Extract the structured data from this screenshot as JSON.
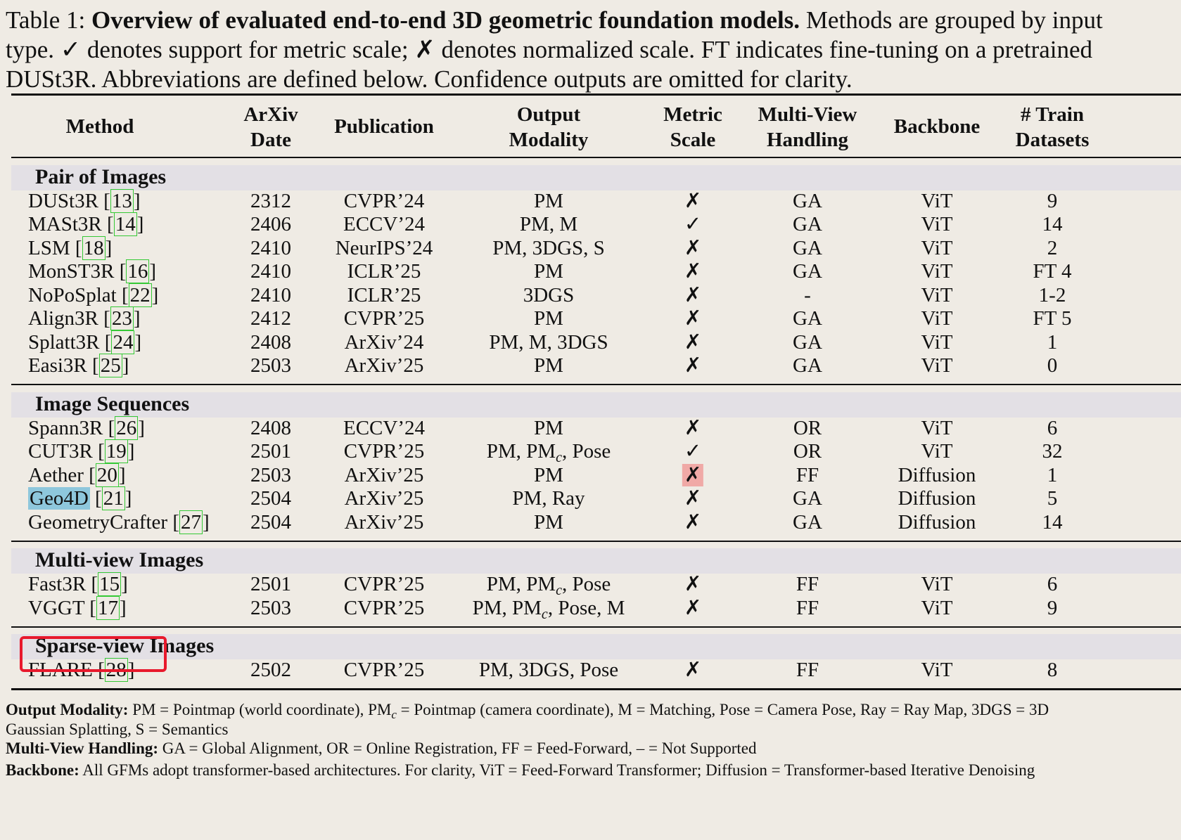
{
  "caption": {
    "label": "Table 1:",
    "title": "Overview of evaluated end-to-end 3D geometric foundation models.",
    "line1_rest": "Methods are grouped by input",
    "line2": "type. ✓ denotes support for metric scale; ✗ denotes normalized scale. FT indicates fine-tuning on a pretrained",
    "line3": "DUSt3R. Abbreviations are defined below. Confidence outputs are omitted for clarity."
  },
  "headers": {
    "method": "Method",
    "arxiv_1": "ArXiv",
    "arxiv_2": "Date",
    "publication": "Publication",
    "output_1": "Output",
    "output_2": "Modality",
    "metric_1": "Metric",
    "metric_2": "Scale",
    "mv_1": "Multi-View",
    "mv_2": "Handling",
    "backbone": "Backbone",
    "train_1": "# Train",
    "train_2": "Datasets"
  },
  "groups": {
    "pair": "Pair of Images",
    "sequences": "Image Sequences",
    "multiview": "Multi-view Images",
    "sparse": "Sparse-view Images"
  },
  "rows": [
    {
      "name": "DUSt3R",
      "ref": "13",
      "date": "2312",
      "pub": "CVPR’24",
      "out": "PM",
      "metric": "✗",
      "mv": "GA",
      "bb": "ViT",
      "train": "9"
    },
    {
      "name": "MASt3R",
      "ref": "14",
      "date": "2406",
      "pub": "ECCV’24",
      "out": "PM, M",
      "metric": "✓",
      "mv": "GA",
      "bb": "ViT",
      "train": "14"
    },
    {
      "name": "LSM",
      "ref": "18",
      "date": "2410",
      "pub": "NeurIPS’24",
      "out": "PM, 3DGS, S",
      "metric": "✗",
      "mv": "GA",
      "bb": "ViT",
      "train": "2"
    },
    {
      "name": "MonST3R",
      "ref": "16",
      "date": "2410",
      "pub": "ICLR’25",
      "out": "PM",
      "metric": "✗",
      "mv": "GA",
      "bb": "ViT",
      "train": "FT 4"
    },
    {
      "name": "NoPoSplat",
      "ref": "22",
      "date": "2410",
      "pub": "ICLR’25",
      "out": "3DGS",
      "metric": "✗",
      "mv": "-",
      "bb": "ViT",
      "train": "1-2"
    },
    {
      "name": "Align3R",
      "ref": "23",
      "date": "2412",
      "pub": "CVPR’25",
      "out": "PM",
      "metric": "✗",
      "mv": "GA",
      "bb": "ViT",
      "train": "FT 5"
    },
    {
      "name": "Splatt3R",
      "ref": "24",
      "date": "2408",
      "pub": "ArXiv’24",
      "out": "PM, M, 3DGS",
      "metric": "✗",
      "mv": "GA",
      "bb": "ViT",
      "train": "1"
    },
    {
      "name": "Easi3R",
      "ref": "25",
      "date": "2503",
      "pub": "ArXiv’25",
      "out": "PM",
      "metric": "✗",
      "mv": "GA",
      "bb": "ViT",
      "train": "0"
    },
    {
      "name": "Spann3R",
      "ref": "26",
      "date": "2408",
      "pub": "ECCV’24",
      "out": "PM",
      "metric": "✗",
      "mv": "OR",
      "bb": "ViT",
      "train": "6"
    },
    {
      "name": "CUT3R",
      "ref": "19",
      "date": "2501",
      "pub": "CVPR’25",
      "out_a": "PM, PM",
      "out_sub": "c",
      "out_b": ", Pose",
      "metric": "✓",
      "mv": "OR",
      "bb": "ViT",
      "train": "32"
    },
    {
      "name": "Aether",
      "ref": "20",
      "date": "2503",
      "pub": "ArXiv’25",
      "out": "PM",
      "metric": "✗",
      "mv": "FF",
      "bb": "Diffusion",
      "train": "1"
    },
    {
      "name": "Geo4D",
      "ref": "21",
      "date": "2504",
      "pub": "ArXiv’25",
      "out": "PM, Ray",
      "metric": "✗",
      "mv": "GA",
      "bb": "Diffusion",
      "train": "5"
    },
    {
      "name": "GeometryCrafter",
      "ref": "27",
      "date": "2504",
      "pub": "ArXiv’25",
      "out": "PM",
      "metric": "✗",
      "mv": "GA",
      "bb": "Diffusion",
      "train": "14"
    },
    {
      "name": "Fast3R",
      "ref": "15",
      "date": "2501",
      "pub": "CVPR’25",
      "out_a": "PM, PM",
      "out_sub": "c",
      "out_b": ", Pose",
      "metric": "✗",
      "mv": "FF",
      "bb": "ViT",
      "train": "6"
    },
    {
      "name": "VGGT",
      "ref": "17",
      "date": "2503",
      "pub": "CVPR’25",
      "out_a": "PM, PM",
      "out_sub": "c",
      "out_b": ", Pose, M",
      "metric": "✗",
      "mv": "FF",
      "bb": "ViT",
      "train": "9"
    },
    {
      "name": "FLARE",
      "ref": "28",
      "date": "2502",
      "pub": "CVPR’25",
      "out": "PM, 3DGS, Pose",
      "metric": "✗",
      "mv": "FF",
      "bb": "ViT",
      "train": "8"
    }
  ],
  "notes": {
    "om_label": "Output Modality:",
    "om_a": "PM = Pointmap (world coordinate), PM",
    "om_sub": "c",
    "om_b": "= Pointmap (camera coordinate), M = Matching, Pose = Camera Pose, Ray = Ray Map, 3DGS = 3D",
    "om_line2": "Gaussian Splatting, S = Semantics",
    "mv_label": "Multi-View Handling:",
    "mv_text": "GA = Global Alignment, OR = Online Registration, FF = Feed-Forward, – = Not Supported",
    "bb_label": "Backbone:",
    "bb_text": "All GFMs adopt transformer-based architectures. For clarity, ViT = Feed-Forward Transformer; Diffusion = Transformer-based Iterative Denoising"
  },
  "highlight_colors": {
    "red_box": "#e8192c",
    "pink": "#f0a9a6",
    "blue": "#8ec7dc",
    "ref_green": "#35c935"
  }
}
